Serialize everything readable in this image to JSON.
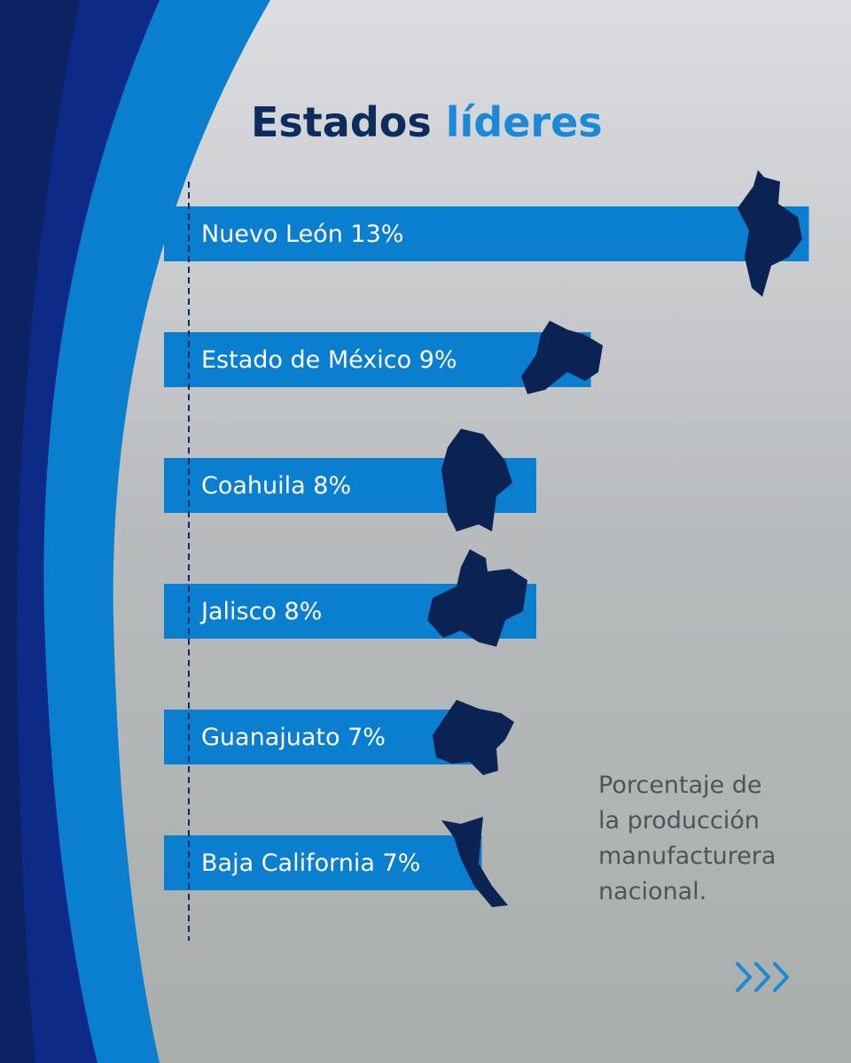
{
  "chart_data": {
    "type": "bar",
    "orientation": "horizontal",
    "title": {
      "part1": "Estados",
      "part2": "líderes"
    },
    "categories": [
      "Nuevo León",
      "Estado de México",
      "Coahuila",
      "Jalisco",
      "Guanajuato",
      "Baja California"
    ],
    "values": [
      13,
      9,
      8,
      8,
      7,
      7
    ],
    "value_labels": [
      "13%",
      "9%",
      "8%",
      "8%",
      "7%",
      "7%"
    ],
    "color": "#0a7fd0",
    "note": [
      "Porcentaje de",
      "la producción",
      "manufacturera",
      "nacional."
    ]
  }
}
